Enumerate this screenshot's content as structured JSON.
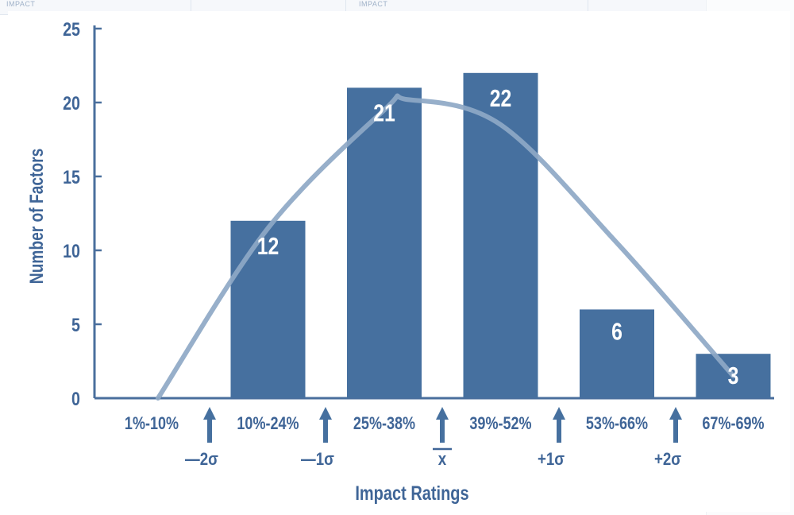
{
  "background": {
    "left_header": "IMPACT",
    "mid_header": "IMPACT"
  },
  "chart_data": {
    "type": "bar",
    "categories": [
      "1%-10%",
      "10%-24%",
      "25%-38%",
      "39%-52%",
      "53%-66%",
      "67%-69%"
    ],
    "values": [
      0,
      12,
      21,
      22,
      6,
      3
    ],
    "data_labels": [
      "",
      "12",
      "21",
      "22",
      "6",
      "3"
    ],
    "xlabel": "Impact Ratings",
    "ylabel": "Number of Factors",
    "ylim": [
      0,
      25
    ],
    "yticks": [
      0,
      5,
      10,
      15,
      20,
      25
    ],
    "grid": false,
    "markers": [
      {
        "label": "—2σ",
        "between": [
          0,
          1
        ]
      },
      {
        "label": "—1σ",
        "between": [
          1,
          2
        ]
      },
      {
        "label": "x",
        "between": [
          2,
          3
        ],
        "overline": true
      },
      {
        "label": "+1σ",
        "between": [
          3,
          4
        ]
      },
      {
        "label": "+2σ",
        "between": [
          4,
          5
        ]
      }
    ],
    "curve": {
      "type": "normal-approximation",
      "points": [
        [
          0.0,
          0
        ],
        [
          1.0,
          11.5
        ],
        [
          2.0,
          19.5
        ],
        [
          2.2,
          20.2
        ],
        [
          3.0,
          18.5
        ],
        [
          4.0,
          10.5
        ],
        [
          5.0,
          1.5
        ]
      ]
    },
    "colors": {
      "bar": "#46709f",
      "curve": "#8ea8c6",
      "axis": "#4a6f9d",
      "text": "#3f6597"
    }
  }
}
